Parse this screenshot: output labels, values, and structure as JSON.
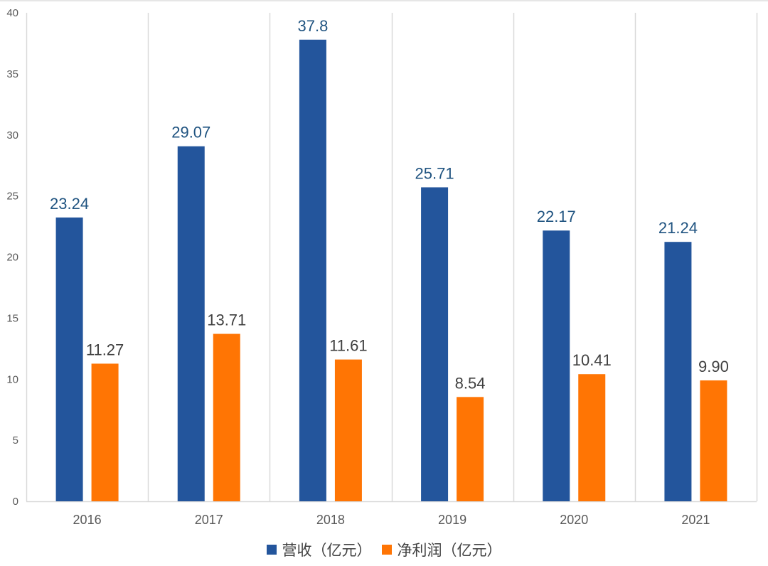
{
  "chart_data": {
    "type": "bar",
    "title": "",
    "xlabel": "",
    "ylabel": "",
    "categories": [
      "2016",
      "2017",
      "2018",
      "2019",
      "2020",
      "2021"
    ],
    "series": [
      {
        "name": "营收（亿元）",
        "color": "#23559C",
        "label_color": "#1F5380",
        "values": [
          23.24,
          29.07,
          37.8,
          25.71,
          22.17,
          21.24
        ],
        "labels": [
          "23.24",
          "29.07",
          "37.8",
          "25.71",
          "22.17",
          "21.24"
        ]
      },
      {
        "name": "净利润（亿元）",
        "color": "#FF7504",
        "label_color": "#404040",
        "values": [
          11.27,
          13.71,
          11.61,
          8.54,
          10.41,
          9.9
        ],
        "labels": [
          "11.27",
          "13.71",
          "11.61",
          "8.54",
          "10.41",
          "9.90"
        ]
      }
    ],
    "ylim": [
      0,
      40
    ],
    "yticks": [
      "0",
      "5",
      "10",
      "15",
      "20",
      "25",
      "30",
      "35",
      "40"
    ],
    "grid": "vertical category separators",
    "legend_position": "bottom"
  }
}
